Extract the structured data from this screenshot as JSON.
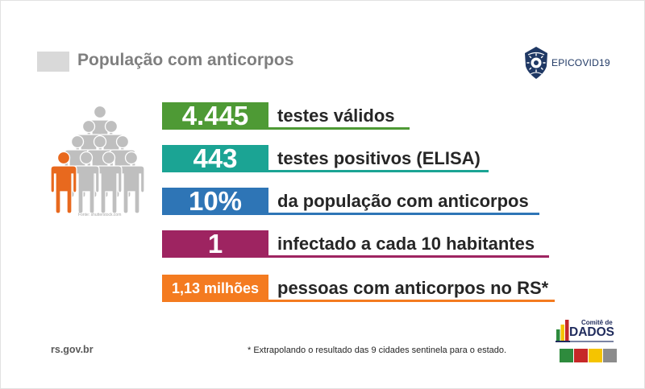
{
  "slide": {
    "title": "População com anticorpos",
    "title_color": "#7f7f7f",
    "title_marker_color": "#d9d9d9"
  },
  "epicovid_logo": {
    "text": "EPICOVID19",
    "icon": "epicovid-shield-icon",
    "color": "#1f3864"
  },
  "illustration": {
    "icon": "people-group-icon",
    "caption": "Fonte: shutterstock.com",
    "base_color": "#bfbfbf",
    "highlight_color": "#e8691e"
  },
  "stats": [
    {
      "value": "4.445",
      "label": "testes válidos",
      "color": "#4e9a35"
    },
    {
      "value": "443",
      "label": "testes positivos (ELISA)",
      "color": "#1ba494"
    },
    {
      "value": "10%",
      "label": "da população com anticorpos",
      "color": "#2e75b6"
    },
    {
      "value": "1",
      "label": "infectado a cada 10 habitantes",
      "color": "#9e2461"
    },
    {
      "value": "1,13 milhões",
      "label": "pessoas com anticorpos no RS*",
      "color": "#f47b20"
    }
  ],
  "footer": {
    "site": "rs.gov.br",
    "note": "* Extrapolando o resultado das 9 cidades sentinela para o estado."
  },
  "comite_logo": {
    "icon": "comite-dados-icon",
    "line1": "Comitê de",
    "line2": "DADOS",
    "colors": [
      "#2e8b3d",
      "#c62828",
      "#f5c400",
      "#8c8c8c"
    ]
  }
}
